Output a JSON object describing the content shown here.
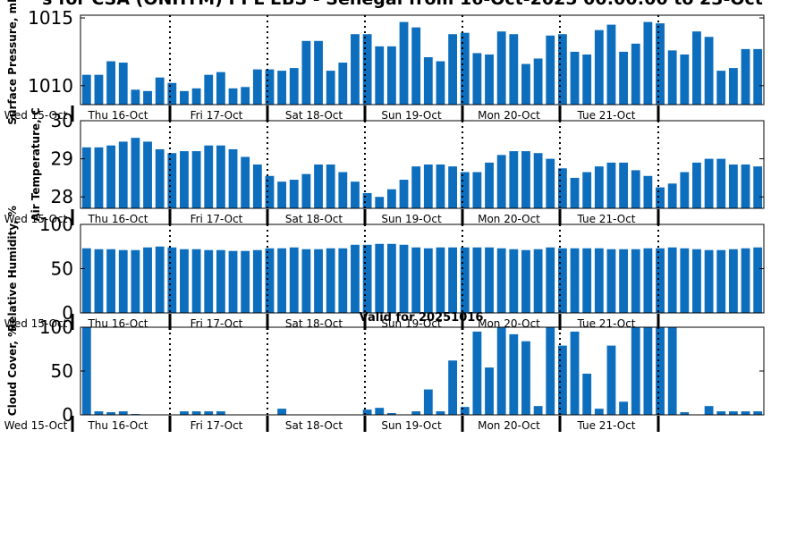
{
  "chart_data": {
    "title": "s for CSA (ONHTM) PPL EBS  - Senegal from 16-Oct-2025 00:00:00 to 23-Oct",
    "subtitle": "Valid for 20251016",
    "type": "bar",
    "day_labels": [
      "Wed 15-Oct",
      "Thu 16-Oct",
      "Fri 17-Oct",
      "Sat 18-Oct",
      "Sun 19-Oct",
      "Mon 20-Oct",
      "Tue 21-Oct"
    ],
    "bar_color": "#0d6ebd",
    "panels": [
      {
        "ylabel": "Surface Pressure, mb",
        "ylim": [
          1008.6,
          1015.2
        ],
        "yticks": [
          "1010",
          "1015"
        ],
        "ytick_values": [
          1010,
          1015
        ],
        "values": [
          1010.8,
          1010.8,
          1011.8,
          1011.7,
          1009.7,
          1009.6,
          1010.6,
          1010.2,
          1009.6,
          1009.8,
          1010.8,
          1011.0,
          1009.8,
          1009.9,
          1011.2,
          1011.2,
          1011.1,
          1011.3,
          1013.3,
          1013.3,
          1011.1,
          1011.7,
          1013.8,
          1013.8,
          1012.9,
          1012.9,
          1014.7,
          1014.3,
          1012.1,
          1011.8,
          1013.8,
          1013.9,
          1012.4,
          1012.3,
          1014.0,
          1013.8,
          1011.6,
          1012.0,
          1013.7,
          1013.8,
          1012.5,
          1012.3,
          1014.1,
          1014.5,
          1012.5,
          1013.1,
          1014.7,
          1014.6,
          1012.6,
          1012.3,
          1014.0,
          1013.6,
          1011.1,
          1011.3,
          1012.7,
          1012.7
        ]
      },
      {
        "ylabel": "Air Temperature, C",
        "ylim": [
          27.7,
          30.0
        ],
        "yticks": [
          "28",
          "29",
          "30"
        ],
        "ytick_values": [
          28,
          29,
          30
        ],
        "values": [
          29.3,
          29.3,
          29.35,
          29.45,
          29.55,
          29.45,
          29.25,
          29.15,
          29.2,
          29.2,
          29.35,
          29.35,
          29.25,
          29.05,
          28.85,
          28.55,
          28.4,
          28.45,
          28.6,
          28.85,
          28.85,
          28.65,
          28.4,
          28.1,
          28.0,
          28.2,
          28.45,
          28.8,
          28.85,
          28.85,
          28.8,
          28.65,
          28.65,
          28.9,
          29.1,
          29.2,
          29.2,
          29.15,
          29.0,
          28.75,
          28.5,
          28.65,
          28.8,
          28.9,
          28.9,
          28.7,
          28.55,
          28.25,
          28.35,
          28.65,
          28.9,
          29.0,
          29.0,
          28.85,
          28.85,
          28.8
        ]
      },
      {
        "ylabel": "Relative Humidity, %",
        "ylim": [
          0,
          100
        ],
        "yticks": [
          "0",
          "50",
          "100"
        ],
        "ytick_values": [
          0,
          50,
          100
        ],
        "values": [
          73,
          72,
          72,
          71,
          71,
          74,
          75,
          74,
          72,
          72,
          71,
          71,
          70,
          70,
          71,
          73,
          73,
          74,
          72,
          72,
          73,
          73,
          77,
          77,
          78,
          78,
          77,
          74,
          73,
          74,
          74,
          74,
          74,
          74,
          73,
          72,
          71,
          72,
          74,
          73,
          73,
          73,
          73,
          72,
          72,
          72,
          73,
          73,
          74,
          73,
          72,
          71,
          71,
          72,
          73,
          74
        ]
      },
      {
        "ylabel": "Cloud Cover, %",
        "ylim": [
          0,
          100
        ],
        "yticks": [
          "0",
          "50",
          "100"
        ],
        "ytick_values": [
          0,
          50,
          100
        ],
        "values": [
          100,
          4,
          3,
          4,
          1,
          0,
          0,
          0,
          4,
          4,
          4,
          4,
          0,
          0,
          0,
          0,
          7,
          0,
          0,
          0,
          0,
          0,
          0,
          6,
          8,
          2,
          0,
          4,
          29,
          4,
          62,
          9,
          95,
          54,
          100,
          92,
          84,
          10,
          100,
          79,
          95,
          47,
          7,
          79,
          15,
          100,
          100,
          100,
          100,
          3,
          0,
          10,
          4,
          4,
          4,
          4
        ]
      }
    ]
  }
}
